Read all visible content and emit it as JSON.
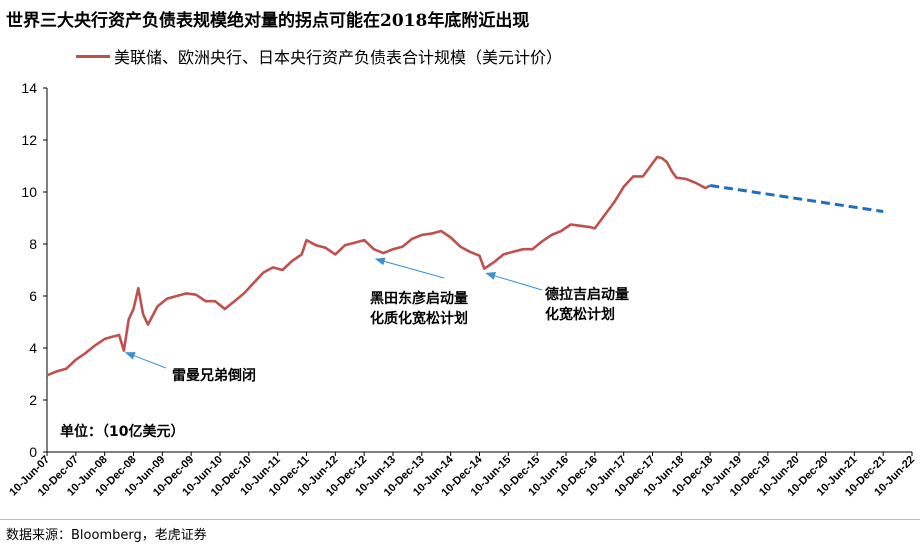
{
  "title": "世界三大央行资产负债表规模绝对量的拐点可能在2018年底附近出现",
  "source": "数据来源：Bloomberg，老虎证券",
  "colors": {
    "actual": "#C0504D",
    "forecast": "#1F6FBF",
    "arrow": "#3E8FD0"
  },
  "chart_data": {
    "type": "line",
    "title": "世界三大央行资产负债表规模绝对量的拐点可能在2018年底附近出现",
    "ylabel": "单位：（10亿美元）",
    "ylim": [
      0,
      14
    ],
    "yticks": [
      "0",
      "2",
      "4",
      "6",
      "8",
      "10",
      "12",
      "14"
    ],
    "legend_position": "top-left",
    "grid": false,
    "x_tick_labels": [
      "10-Jun-07",
      "10-Dec-07",
      "10-Jun-08",
      "10-Dec-08",
      "10-Jun-09",
      "10-Dec-09",
      "10-Jun-10",
      "10-Dec-10",
      "10-Jun-11",
      "10-Dec-11",
      "10-Jun-12",
      "10-Dec-12",
      "10-Jun-13",
      "10-Dec-13",
      "10-Jun-14",
      "10-Dec-14",
      "10-Jun-15",
      "10-Dec-15",
      "10-Jun-16",
      "10-Dec-16",
      "10-Jun-17",
      "10-Dec-17",
      "10-Jun-18",
      "10-Dec-18",
      "10-Jun-19",
      "10-Dec-19",
      "10-Jun-20",
      "10-Dec-20",
      "10-Jun-21",
      "10-Dec-21",
      "10-Jun-22"
    ],
    "series": [
      {
        "name": "美联储、欧洲央行、日本央行资产负债表合计规模（美元计价）",
        "style": "solid",
        "points": [
          [
            "2007-06",
            2.95
          ],
          [
            "2007-08",
            3.1
          ],
          [
            "2007-10",
            3.2
          ],
          [
            "2007-12",
            3.55
          ],
          [
            "2008-02",
            3.8
          ],
          [
            "2008-04",
            4.1
          ],
          [
            "2008-06",
            4.35
          ],
          [
            "2008-08",
            4.45
          ],
          [
            "2008-09",
            4.5
          ],
          [
            "2008-10",
            3.9
          ],
          [
            "2008-11",
            5.1
          ],
          [
            "2008-12",
            5.5
          ],
          [
            "2009-01",
            6.3
          ],
          [
            "2009-02",
            5.3
          ],
          [
            "2009-03",
            4.9
          ],
          [
            "2009-05",
            5.6
          ],
          [
            "2009-07",
            5.9
          ],
          [
            "2009-09",
            6.0
          ],
          [
            "2009-11",
            6.1
          ],
          [
            "2010-01",
            6.05
          ],
          [
            "2010-03",
            5.8
          ],
          [
            "2010-05",
            5.8
          ],
          [
            "2010-07",
            5.5
          ],
          [
            "2010-09",
            5.8
          ],
          [
            "2010-11",
            6.1
          ],
          [
            "2011-01",
            6.5
          ],
          [
            "2011-03",
            6.9
          ],
          [
            "2011-05",
            7.1
          ],
          [
            "2011-07",
            7.0
          ],
          [
            "2011-09",
            7.35
          ],
          [
            "2011-11",
            7.6
          ],
          [
            "2011-12",
            8.15
          ],
          [
            "2012-02",
            7.95
          ],
          [
            "2012-04",
            7.85
          ],
          [
            "2012-06",
            7.6
          ],
          [
            "2012-08",
            7.95
          ],
          [
            "2012-10",
            8.05
          ],
          [
            "2012-12",
            8.15
          ],
          [
            "2013-02",
            7.8
          ],
          [
            "2013-04",
            7.65
          ],
          [
            "2013-06",
            7.8
          ],
          [
            "2013-08",
            7.9
          ],
          [
            "2013-10",
            8.2
          ],
          [
            "2013-12",
            8.35
          ],
          [
            "2014-02",
            8.4
          ],
          [
            "2014-04",
            8.5
          ],
          [
            "2014-06",
            8.25
          ],
          [
            "2014-08",
            7.9
          ],
          [
            "2014-10",
            7.7
          ],
          [
            "2014-12",
            7.55
          ],
          [
            "2015-01",
            7.05
          ],
          [
            "2015-03",
            7.3
          ],
          [
            "2015-05",
            7.6
          ],
          [
            "2015-07",
            7.7
          ],
          [
            "2015-09",
            7.8
          ],
          [
            "2015-11",
            7.8
          ],
          [
            "2016-01",
            8.1
          ],
          [
            "2016-03",
            8.35
          ],
          [
            "2016-05",
            8.5
          ],
          [
            "2016-07",
            8.75
          ],
          [
            "2016-09",
            8.7
          ],
          [
            "2016-11",
            8.65
          ],
          [
            "2016-12",
            8.6
          ],
          [
            "2017-02",
            9.1
          ],
          [
            "2017-04",
            9.6
          ],
          [
            "2017-06",
            10.2
          ],
          [
            "2017-08",
            10.6
          ],
          [
            "2017-10",
            10.6
          ],
          [
            "2017-12",
            11.1
          ],
          [
            "2018-01",
            11.35
          ],
          [
            "2018-02",
            11.3
          ],
          [
            "2018-03",
            11.15
          ],
          [
            "2018-04",
            10.8
          ],
          [
            "2018-05",
            10.55
          ],
          [
            "2018-07",
            10.5
          ],
          [
            "2018-09",
            10.35
          ],
          [
            "2018-11",
            10.15
          ],
          [
            "2018-12",
            10.25
          ]
        ]
      },
      {
        "name": "",
        "style": "dashed",
        "points": [
          [
            "2018-12",
            10.25
          ],
          [
            "2021-12",
            9.25
          ]
        ]
      }
    ],
    "y_axis_note": "单位：（10亿美元）",
    "annotations": [
      {
        "text_lines": [
          "雷曼兄弟倒闭"
        ],
        "point": [
          "2008-10",
          3.9
        ]
      },
      {
        "text_lines": [
          "黑田东彦启动量",
          "化质化宽松计划"
        ],
        "point": [
          "2013-02",
          7.5
        ]
      },
      {
        "text_lines": [
          "德拉吉启动量",
          "化宽松计划"
        ],
        "point": [
          "2015-01",
          6.95
        ]
      }
    ]
  }
}
